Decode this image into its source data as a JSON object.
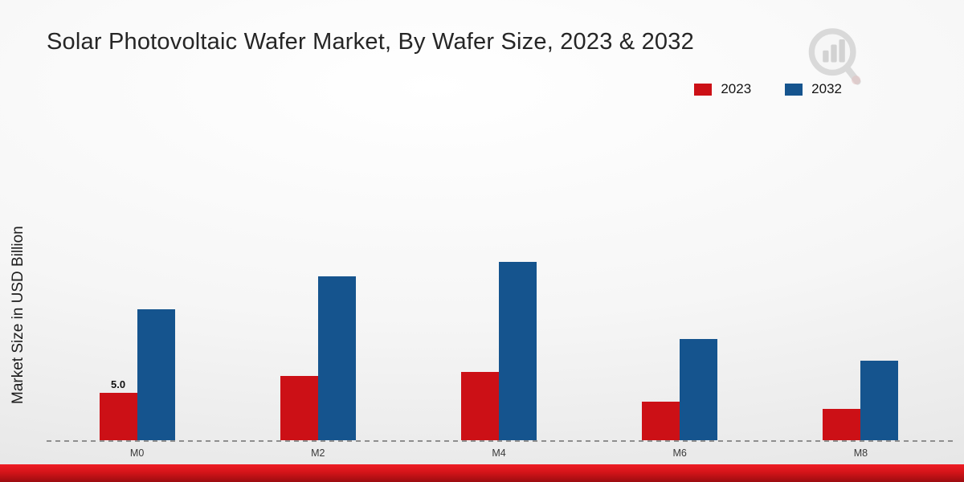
{
  "chart_data": {
    "type": "bar",
    "title": "Solar Photovoltaic Wafer Market, By Wafer Size, 2023 & 2032",
    "xlabel": "",
    "ylabel": "Market Size in USD Billion",
    "categories": [
      "M0",
      "M2",
      "M4",
      "M6",
      "M8"
    ],
    "series": [
      {
        "name": "2023",
        "color": "#cc1016",
        "values": [
          5.0,
          6.8,
          7.2,
          4.1,
          3.3
        ]
      },
      {
        "name": "2032",
        "color": "#15548e",
        "values": [
          13.8,
          17.3,
          18.8,
          10.7,
          8.4
        ]
      }
    ],
    "annotations": [
      {
        "series_index": 0,
        "category_index": 0,
        "text": "5.0"
      }
    ],
    "ylim": [
      0,
      22
    ],
    "grid": false,
    "baseline_style": "dashed",
    "legend_position": "top-right"
  },
  "colors": {
    "background_center": "#ffffff",
    "background_edge": "#e4e4e4",
    "bottom_strip": "#d41419",
    "baseline": "#8f8f8f",
    "title_text": "#262626"
  },
  "watermark": {
    "icon": "magnifier-bar-chart-logo"
  }
}
